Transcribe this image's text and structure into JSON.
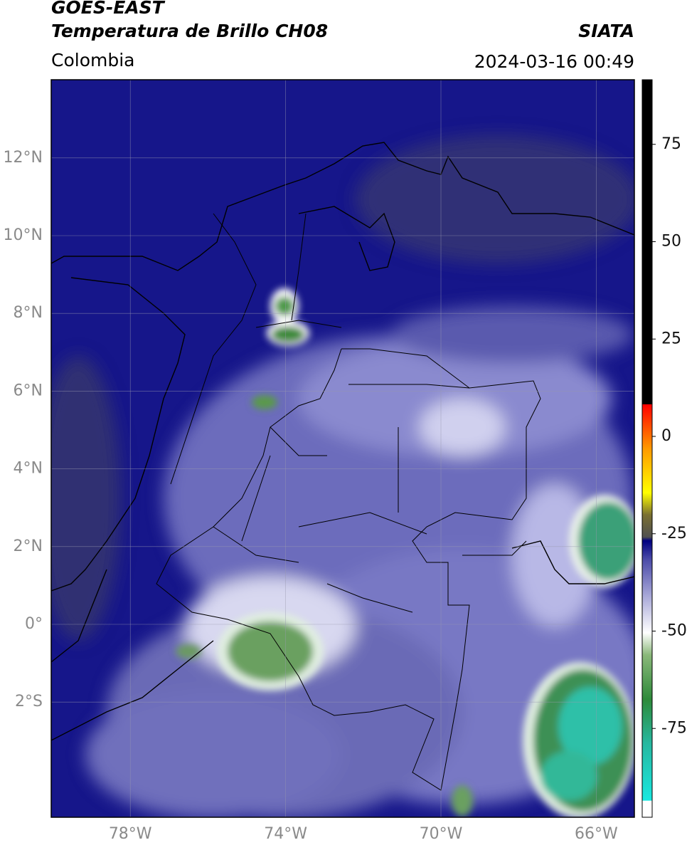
{
  "header": {
    "title": "GOES-EAST",
    "subtitle": "Temperatura de Brillo CH08",
    "source": "SIATA",
    "region": "Colombia",
    "timestamp": "2024-03-16 00:49"
  },
  "map": {
    "lat_ticks": [
      {
        "value": 12,
        "label": "12°N"
      },
      {
        "value": 10,
        "label": "10°N"
      },
      {
        "value": 8,
        "label": "8°N"
      },
      {
        "value": 6,
        "label": "6°N"
      },
      {
        "value": 4,
        "label": "4°N"
      },
      {
        "value": 2,
        "label": "2°N"
      },
      {
        "value": 0,
        "label": "0°"
      },
      {
        "value": -2,
        "label": "2°S"
      }
    ],
    "lon_ticks": [
      {
        "value": -78,
        "label": "78°W"
      },
      {
        "value": -74,
        "label": "74°W"
      },
      {
        "value": -70,
        "label": "70°W"
      },
      {
        "value": -66,
        "label": "66°W"
      }
    ]
  },
  "colorbar": {
    "ticks": [
      75,
      50,
      25,
      0,
      -25,
      -50,
      -75
    ]
  }
}
